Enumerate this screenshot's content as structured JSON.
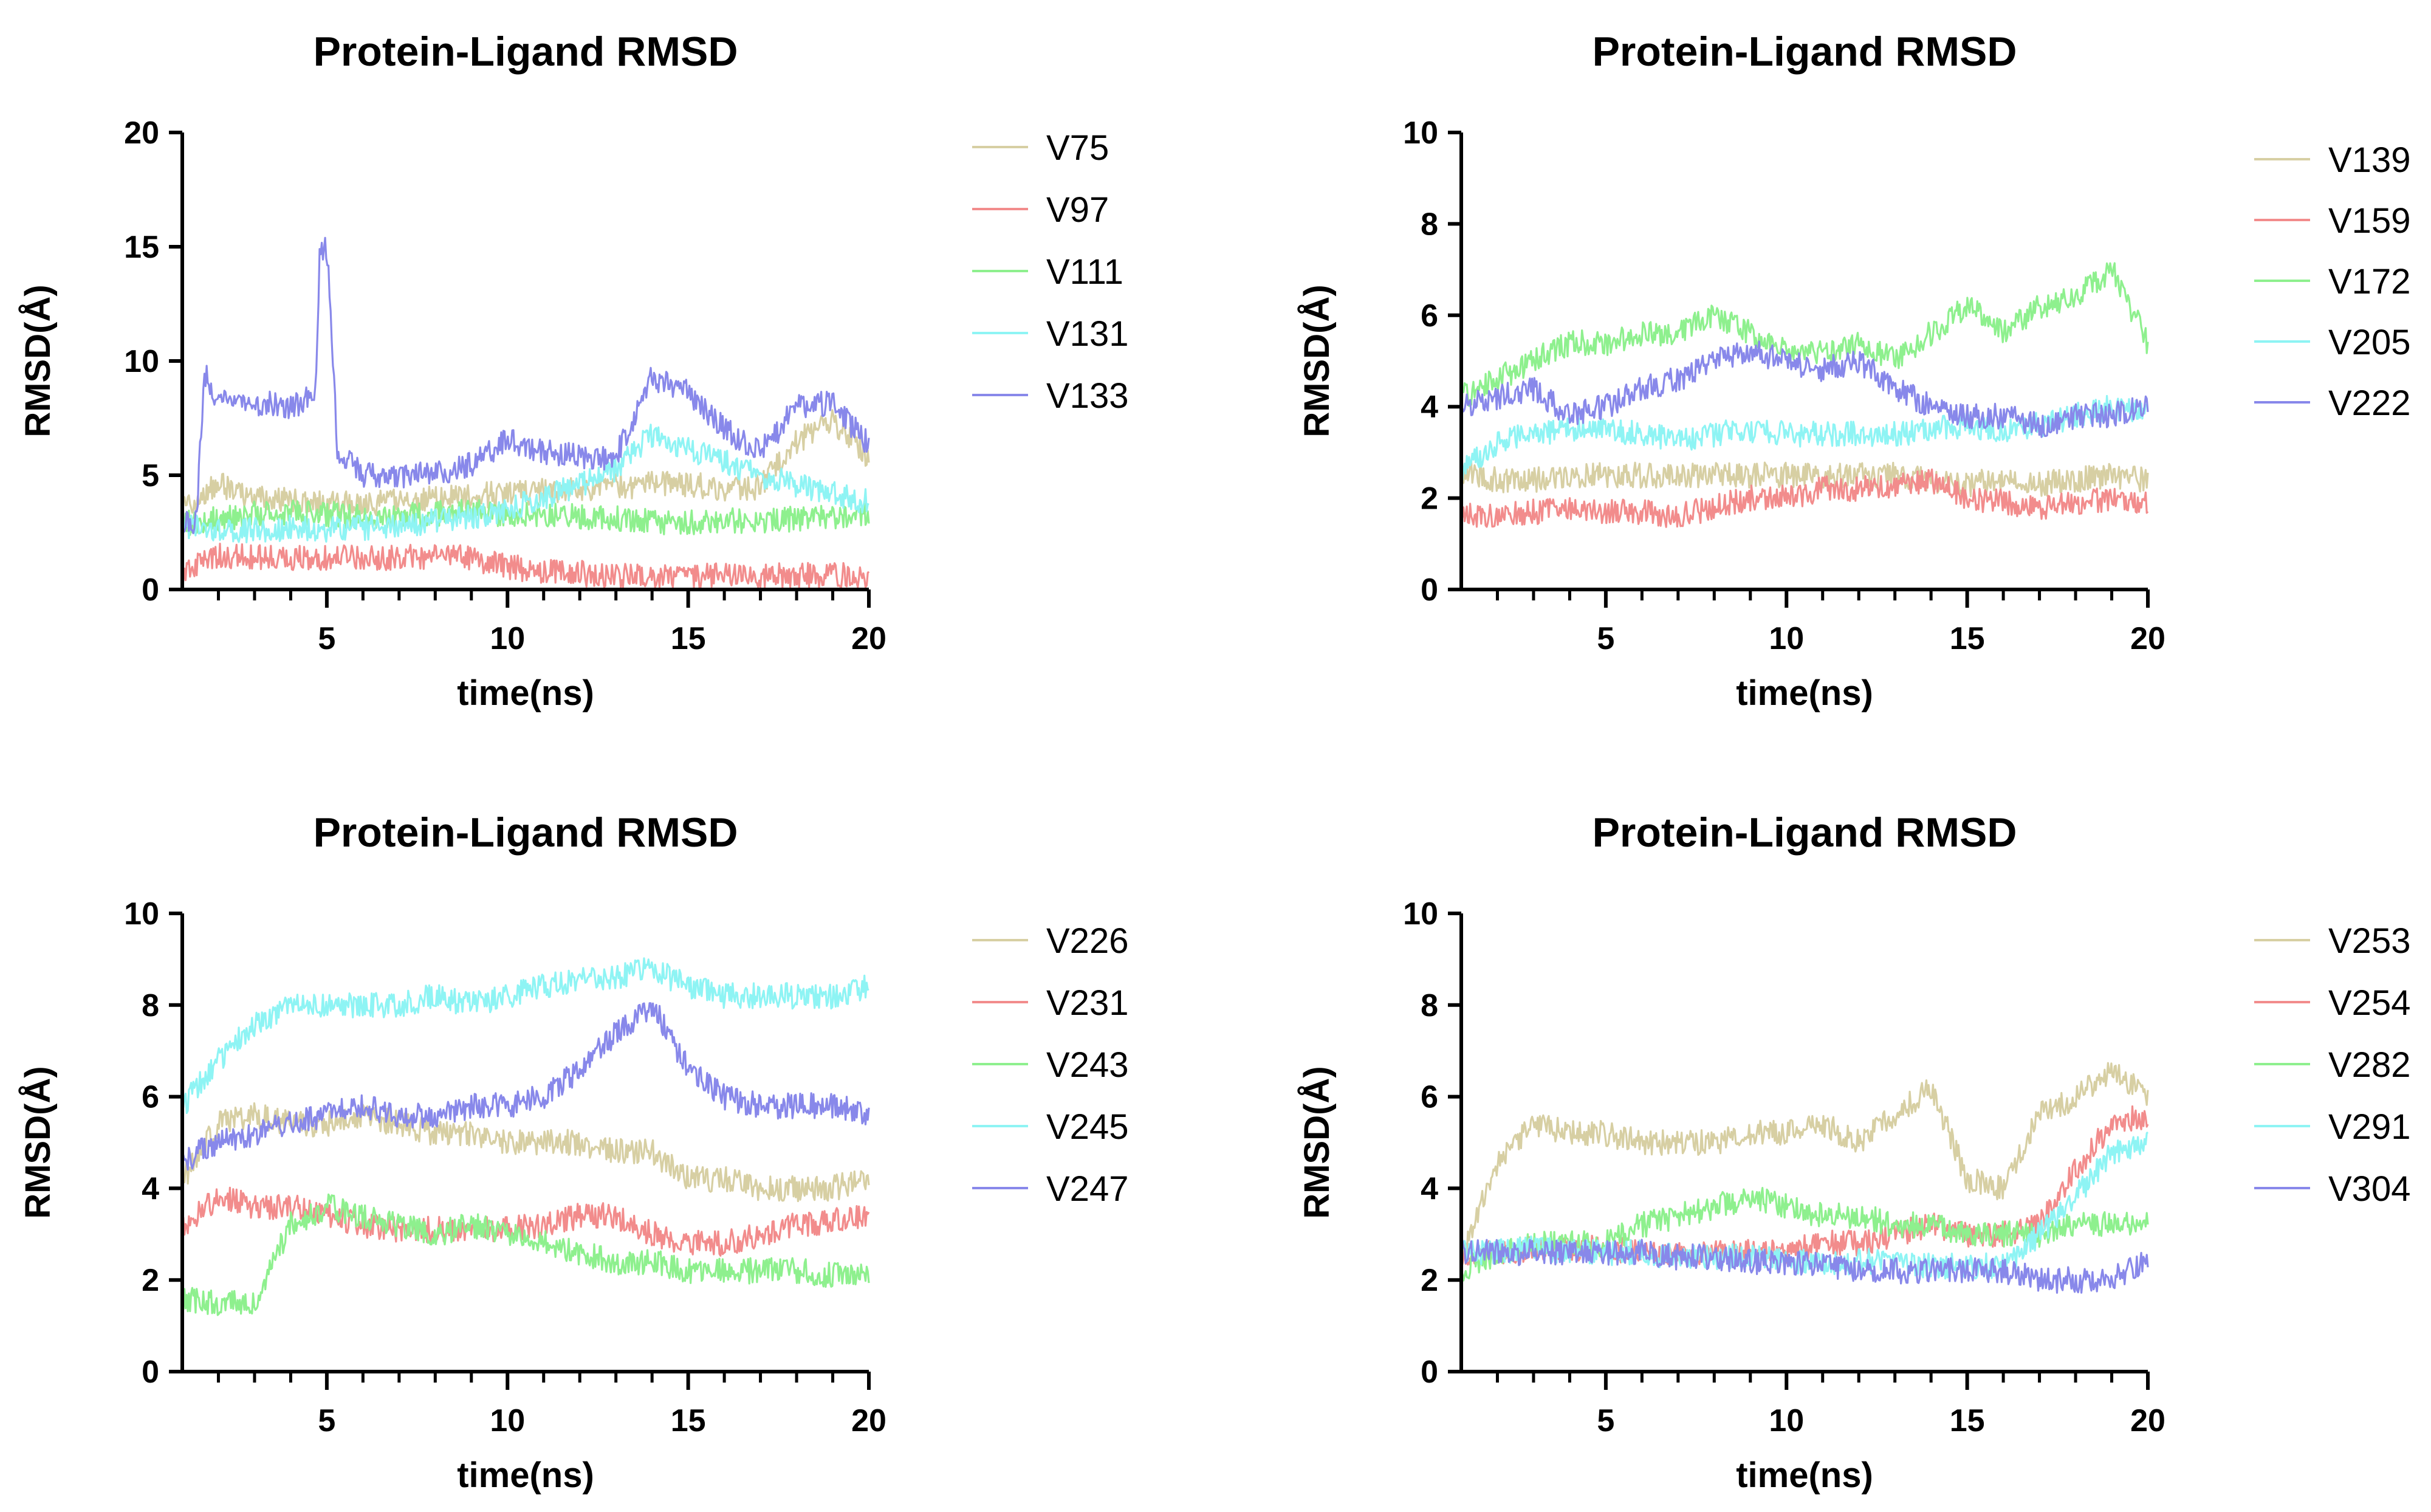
{
  "chart_data": [
    {
      "type": "line",
      "title": "Protein-Ligand RMSD",
      "xlabel": "time(ns)",
      "ylabel": "RMSD(Å)",
      "xlim": [
        1,
        20
      ],
      "ylim": [
        0,
        20
      ],
      "xticks": [
        5,
        10,
        15,
        20
      ],
      "yticks": [
        0,
        5,
        10,
        15,
        20
      ],
      "legend": "right",
      "grid": false,
      "series": [
        {
          "name": "V75",
          "color": "#d7cfa3",
          "x": [
            1,
            2,
            3,
            4,
            5,
            6,
            7,
            8,
            9,
            10,
            11,
            12,
            13,
            14,
            15,
            16,
            17,
            18,
            19,
            20
          ],
          "values": [
            3.6,
            4.6,
            4.0,
            3.9,
            3.8,
            3.7,
            3.9,
            4.0,
            4.1,
            4.2,
            4.3,
            4.4,
            4.5,
            4.6,
            4.6,
            4.4,
            4.5,
            6.5,
            7.4,
            5.8
          ]
        },
        {
          "name": "V97",
          "color": "#f28c8c",
          "x": [
            1,
            2,
            3,
            4,
            5,
            6,
            7,
            8,
            9,
            10,
            11,
            12,
            13,
            14,
            15,
            16,
            17,
            18,
            19,
            20
          ],
          "values": [
            0.7,
            1.5,
            1.4,
            1.4,
            1.4,
            1.4,
            1.4,
            1.4,
            1.4,
            1.0,
            0.8,
            0.7,
            0.6,
            0.6,
            0.6,
            0.6,
            0.6,
            0.6,
            0.6,
            0.6
          ]
        },
        {
          "name": "V111",
          "color": "#8ef08e",
          "x": [
            1,
            2,
            3,
            4,
            5,
            6,
            7,
            8,
            9,
            10,
            11,
            12,
            13,
            14,
            15,
            16,
            17,
            18,
            19,
            20
          ],
          "values": [
            2.9,
            3.1,
            3.3,
            3.4,
            3.3,
            3.2,
            3.2,
            3.3,
            3.4,
            3.3,
            3.3,
            3.2,
            3.1,
            3.0,
            2.9,
            3.0,
            3.0,
            3.1,
            3.2,
            3.4
          ]
        },
        {
          "name": "V131",
          "color": "#8ef4f4",
          "x": [
            1,
            2,
            3,
            4,
            5,
            6,
            7,
            8,
            9,
            10,
            11,
            12,
            13,
            14,
            15,
            16,
            17,
            18,
            19,
            20
          ],
          "values": [
            2.8,
            2.6,
            2.6,
            2.7,
            2.6,
            2.7,
            2.8,
            3.0,
            3.2,
            3.5,
            4.0,
            4.6,
            5.3,
            6.8,
            6.2,
            5.6,
            5.0,
            4.6,
            4.2,
            3.8
          ]
        },
        {
          "name": "V133",
          "color": "#8888ea",
          "x": [
            1,
            1.4,
            1.6,
            2,
            3,
            4,
            4.7,
            4.8,
            5.0,
            5.3,
            6,
            7,
            8,
            9,
            10,
            11,
            12,
            13,
            14,
            15,
            16,
            17,
            18,
            19,
            20
          ],
          "values": [
            3.0,
            3.0,
            9.5,
            8.2,
            8.2,
            8.0,
            8.5,
            14.8,
            15.0,
            6.0,
            5.0,
            5.0,
            5.0,
            5.5,
            6.5,
            6.0,
            5.8,
            5.8,
            9.3,
            8.6,
            7.0,
            6.0,
            8.0,
            8.2,
            6.3
          ]
        }
      ]
    },
    {
      "type": "line",
      "title": "Protein-Ligand RMSD",
      "xlabel": "time(ns)",
      "ylabel": "RMSD(Å)",
      "xlim": [
        1,
        20
      ],
      "ylim": [
        0,
        10
      ],
      "xticks": [
        5,
        10,
        15,
        20
      ],
      "yticks": [
        0,
        2,
        4,
        6,
        8,
        10
      ],
      "legend": "right",
      "grid": false,
      "series": [
        {
          "name": "V139",
          "color": "#d7cfa3",
          "x": [
            1,
            2,
            3,
            4,
            5,
            6,
            7,
            8,
            9,
            10,
            11,
            12,
            13,
            14,
            15,
            16,
            17,
            18,
            19,
            20
          ],
          "values": [
            2.6,
            2.4,
            2.4,
            2.5,
            2.5,
            2.5,
            2.5,
            2.5,
            2.5,
            2.5,
            2.5,
            2.5,
            2.5,
            2.4,
            2.3,
            2.4,
            2.3,
            2.4,
            2.5,
            2.4
          ]
        },
        {
          "name": "V159",
          "color": "#f28c8c",
          "x": [
            1,
            2,
            3,
            4,
            5,
            6,
            7,
            8,
            9,
            10,
            11,
            12,
            13,
            14,
            15,
            16,
            17,
            18,
            19,
            20
          ],
          "values": [
            1.6,
            1.6,
            1.7,
            1.8,
            1.7,
            1.7,
            1.6,
            1.8,
            2.0,
            2.0,
            2.2,
            2.2,
            2.3,
            2.4,
            2.0,
            1.9,
            1.8,
            1.9,
            2.0,
            1.9
          ]
        },
        {
          "name": "V172",
          "color": "#8ef08e",
          "x": [
            1,
            2,
            3,
            4,
            5,
            6,
            7,
            8,
            9,
            10,
            11,
            12,
            13,
            14,
            15,
            16,
            17,
            18,
            19,
            20
          ],
          "values": [
            4.2,
            4.6,
            5.0,
            5.4,
            5.4,
            5.6,
            5.6,
            6.0,
            5.6,
            5.2,
            5.2,
            5.4,
            5.0,
            5.6,
            6.2,
            5.6,
            6.2,
            6.4,
            7.0,
            5.4
          ]
        },
        {
          "name": "V205",
          "color": "#8ef4f4",
          "x": [
            1,
            2,
            3,
            4,
            5,
            6,
            7,
            8,
            9,
            10,
            11,
            12,
            13,
            14,
            15,
            16,
            17,
            18,
            19,
            20
          ],
          "values": [
            2.6,
            3.2,
            3.4,
            3.5,
            3.5,
            3.4,
            3.3,
            3.4,
            3.5,
            3.4,
            3.4,
            3.4,
            3.4,
            3.5,
            3.6,
            3.5,
            3.6,
            3.8,
            4.0,
            3.8
          ]
        },
        {
          "name": "V222",
          "color": "#8888ea",
          "x": [
            1,
            2,
            3,
            4,
            5,
            6,
            7,
            8,
            9,
            10,
            11,
            12,
            13,
            14,
            15,
            16,
            17,
            18,
            19,
            20
          ],
          "values": [
            4.0,
            4.2,
            4.4,
            3.8,
            4.0,
            4.4,
            4.6,
            5.0,
            5.2,
            5.0,
            4.8,
            5.0,
            4.4,
            4.0,
            3.8,
            3.8,
            3.6,
            3.8,
            3.8,
            4.0
          ]
        }
      ]
    },
    {
      "type": "line",
      "title": "Protein-Ligand RMSD",
      "xlabel": "time(ns)",
      "ylabel": "RMSD(Å)",
      "xlim": [
        1,
        20
      ],
      "ylim": [
        0,
        10
      ],
      "xticks": [
        5,
        10,
        15,
        20
      ],
      "yticks": [
        0,
        2,
        4,
        6,
        8,
        10
      ],
      "legend": "right",
      "grid": false,
      "series": [
        {
          "name": "V226",
          "color": "#d7cfa3",
          "x": [
            1,
            2,
            3,
            4,
            5,
            6,
            7,
            8,
            9,
            10,
            11,
            12,
            13,
            14,
            15,
            16,
            17,
            18,
            19,
            20
          ],
          "values": [
            4.2,
            5.4,
            5.6,
            5.4,
            5.4,
            5.6,
            5.4,
            5.2,
            5.2,
            5.0,
            5.0,
            5.0,
            4.8,
            4.8,
            4.2,
            4.2,
            4.0,
            4.0,
            4.0,
            4.2
          ]
        },
        {
          "name": "V231",
          "color": "#f28c8c",
          "x": [
            1,
            2,
            3,
            4,
            5,
            6,
            7,
            8,
            9,
            10,
            11,
            12,
            13,
            14,
            15,
            16,
            17,
            18,
            19,
            20
          ],
          "values": [
            3.2,
            3.8,
            3.6,
            3.6,
            3.4,
            3.2,
            3.1,
            3.1,
            3.1,
            3.1,
            3.2,
            3.4,
            3.4,
            3.0,
            2.8,
            2.8,
            3.0,
            3.2,
            3.3,
            3.4
          ]
        },
        {
          "name": "V243",
          "color": "#8ef08e",
          "x": [
            1,
            2,
            3,
            4,
            5,
            6,
            7,
            8,
            9,
            10,
            11,
            12,
            13,
            14,
            15,
            16,
            17,
            18,
            19,
            20
          ],
          "values": [
            1.6,
            1.5,
            1.5,
            3.2,
            3.6,
            3.4,
            3.2,
            3.0,
            3.2,
            3.0,
            2.8,
            2.6,
            2.4,
            2.4,
            2.2,
            2.2,
            2.2,
            2.2,
            2.1,
            2.2
          ]
        },
        {
          "name": "V245",
          "color": "#8ef4f4",
          "x": [
            1,
            2,
            3,
            4,
            5,
            6,
            7,
            8,
            9,
            10,
            11,
            12,
            13,
            14,
            15,
            16,
            17,
            18,
            19,
            20
          ],
          "values": [
            5.8,
            6.8,
            7.6,
            8.0,
            8.0,
            8.0,
            8.0,
            8.2,
            8.0,
            8.2,
            8.4,
            8.6,
            8.6,
            8.8,
            8.4,
            8.2,
            8.2,
            8.2,
            8.2,
            8.4
          ]
        },
        {
          "name": "V247",
          "color": "#8888ea",
          "x": [
            1,
            2,
            3,
            4,
            5,
            6,
            7,
            8,
            9,
            10,
            11,
            12,
            13,
            14,
            15,
            16,
            17,
            18,
            19,
            20
          ],
          "values": [
            4.6,
            5.0,
            5.2,
            5.4,
            5.6,
            5.8,
            5.6,
            5.6,
            5.8,
            5.8,
            6.0,
            6.6,
            7.4,
            8.0,
            6.6,
            6.0,
            5.8,
            5.8,
            5.8,
            5.6
          ]
        }
      ]
    },
    {
      "type": "line",
      "title": "Protein-Ligand RMSD",
      "xlabel": "time(ns)",
      "ylabel": "RMSD(Å)",
      "xlim": [
        1,
        20
      ],
      "ylim": [
        0,
        10
      ],
      "xticks": [
        5,
        10,
        15,
        20
      ],
      "yticks": [
        0,
        2,
        4,
        6,
        8,
        10
      ],
      "legend": "right",
      "grid": false,
      "series": [
        {
          "name": "V253",
          "color": "#d7cfa3",
          "x": [
            1,
            2,
            3,
            4,
            5,
            6,
            7,
            8,
            9,
            10,
            11,
            12,
            13,
            14,
            15,
            16,
            17,
            18,
            19,
            20
          ],
          "values": [
            2.4,
            4.6,
            5.4,
            5.2,
            5.2,
            5.0,
            5.0,
            5.0,
            5.2,
            5.2,
            5.4,
            5.0,
            5.6,
            6.2,
            4.2,
            4.0,
            5.6,
            6.0,
            6.6,
            6.0
          ]
        },
        {
          "name": "V254",
          "color": "#f28c8c",
          "x": [
            1,
            2,
            3,
            4,
            5,
            6,
            7,
            8,
            9,
            10,
            11,
            12,
            13,
            14,
            15,
            16,
            17,
            18,
            19,
            20
          ],
          "values": [
            2.6,
            2.6,
            2.7,
            2.7,
            2.7,
            2.6,
            2.6,
            2.6,
            2.6,
            2.6,
            2.8,
            2.8,
            3.0,
            3.2,
            3.0,
            3.0,
            3.2,
            4.4,
            5.4,
            5.6
          ]
        },
        {
          "name": "V282",
          "color": "#8ef08e",
          "x": [
            1,
            2,
            3,
            4,
            5,
            6,
            7,
            8,
            9,
            10,
            11,
            12,
            13,
            14,
            15,
            16,
            17,
            18,
            19,
            20
          ],
          "values": [
            2.2,
            2.6,
            2.8,
            2.8,
            2.8,
            3.2,
            3.4,
            3.6,
            3.8,
            3.6,
            3.4,
            3.4,
            3.2,
            3.2,
            3.0,
            3.0,
            3.0,
            3.2,
            3.2,
            3.2
          ]
        },
        {
          "name": "V291",
          "color": "#8ef4f4",
          "x": [
            1,
            2,
            3,
            4,
            5,
            6,
            7,
            8,
            9,
            10,
            11,
            12,
            13,
            14,
            15,
            16,
            17,
            18,
            19,
            20
          ],
          "values": [
            2.6,
            2.6,
            2.7,
            2.6,
            2.6,
            2.6,
            2.5,
            2.5,
            2.5,
            2.4,
            2.4,
            2.4,
            2.4,
            2.3,
            2.3,
            2.3,
            3.0,
            3.8,
            4.8,
            5.0
          ]
        },
        {
          "name": "V304",
          "color": "#8888ea",
          "x": [
            1,
            2,
            3,
            4,
            5,
            6,
            7,
            8,
            9,
            10,
            11,
            12,
            13,
            14,
            15,
            16,
            17,
            18,
            19,
            20
          ],
          "values": [
            2.6,
            2.6,
            2.6,
            2.6,
            2.6,
            2.6,
            2.5,
            2.5,
            2.4,
            2.4,
            2.3,
            2.2,
            2.2,
            2.2,
            2.2,
            2.2,
            2.0,
            2.0,
            2.0,
            2.4
          ]
        }
      ]
    }
  ]
}
